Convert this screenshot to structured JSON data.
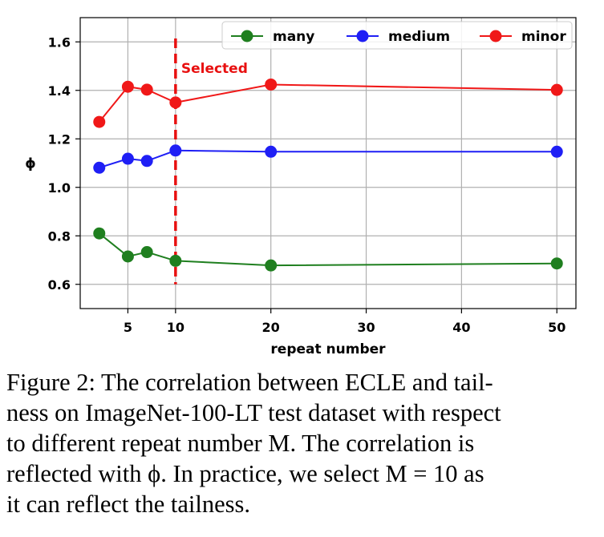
{
  "chart_data": {
    "type": "line",
    "xlabel": "repeat number",
    "ylabel": "ϕ",
    "xlim": [
      0,
      52
    ],
    "ylim": [
      0.5,
      1.7
    ],
    "xticks": [
      5,
      10,
      20,
      30,
      40,
      50
    ],
    "yticks": [
      0.6,
      0.8,
      1.0,
      1.2,
      1.4,
      1.6
    ],
    "ytick_labels": [
      "0.6",
      "0.8",
      "1.0",
      "1.2",
      "1.4",
      "1.6"
    ],
    "grid": true,
    "legend_position": "top-right",
    "x": [
      2,
      5,
      7,
      10,
      20,
      50
    ],
    "series": [
      {
        "name": "many",
        "color": "#1f7f1f",
        "values": [
          0.81,
          0.715,
          0.733,
          0.697,
          0.678,
          0.686
        ]
      },
      {
        "name": "medium",
        "color": "#1f1ff5",
        "values": [
          1.081,
          1.118,
          1.109,
          1.152,
          1.147,
          1.147
        ]
      },
      {
        "name": "minor",
        "color": "#f01818",
        "values": [
          1.27,
          1.415,
          1.403,
          1.35,
          1.424,
          1.402
        ]
      }
    ],
    "vline": {
      "x": 10,
      "label": "Selected",
      "color": "#e81010"
    }
  },
  "caption": {
    "lines": [
      "Figure 2: The correlation between ECLE and tail-",
      "ness on ImageNet-100-LT test dataset with respect",
      "to different repeat number M. The correlation is",
      "reflected with ϕ. In practice, we select M = 10 as",
      "it can reflect the tailness."
    ]
  }
}
